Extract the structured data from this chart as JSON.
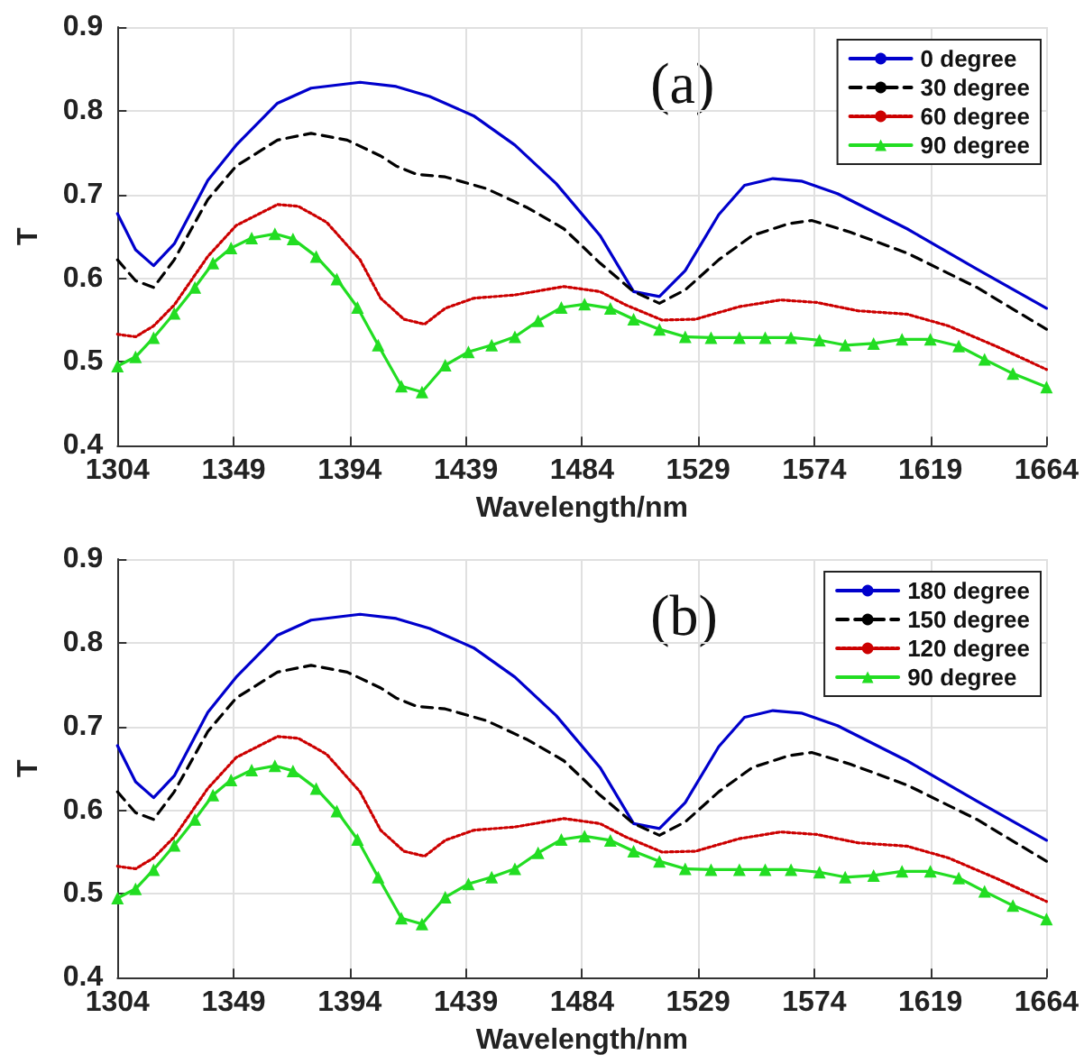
{
  "chart_data": [
    {
      "type": "line",
      "xlabel": "Wavelength/nm",
      "ylabel": "T",
      "annotations": [
        "(a)"
      ],
      "xlim": [
        1304,
        1664
      ],
      "xticks": [
        1304,
        1349,
        1394,
        1439,
        1484,
        1529,
        1574,
        1619,
        1664
      ],
      "ylim": [
        0.4,
        0.9
      ],
      "yticks": [
        0.4,
        0.5,
        0.6,
        0.7,
        0.8,
        0.9
      ],
      "grid": true,
      "legend": "top right",
      "series": [
        {
          "name": "0 degree",
          "color": "#0000cc",
          "line_style": "solid",
          "marker": "none",
          "x": [
            1304,
            1311,
            1318,
            1326,
            1339,
            1350,
            1366,
            1379,
            1398,
            1412,
            1425,
            1442,
            1458,
            1474,
            1491,
            1504,
            1514,
            1524,
            1537,
            1547,
            1558,
            1569,
            1583,
            1610,
            1637,
            1664
          ],
          "values": [
            0.677,
            0.634,
            0.615,
            0.641,
            0.717,
            0.759,
            0.809,
            0.827,
            0.834,
            0.829,
            0.817,
            0.794,
            0.759,
            0.713,
            0.651,
            0.584,
            0.578,
            0.609,
            0.676,
            0.711,
            0.719,
            0.716,
            0.701,
            0.659,
            0.611,
            0.564
          ]
        },
        {
          "name": "30 degree",
          "color": "#000000",
          "line_style": "dashed",
          "marker": "none",
          "x": [
            1304,
            1311,
            1318,
            1326,
            1339,
            1350,
            1366,
            1379,
            1393,
            1406,
            1412,
            1420,
            1431,
            1447,
            1463,
            1477,
            1491,
            1504,
            1514,
            1524,
            1537,
            1550,
            1564,
            1573,
            1588,
            1610,
            1637,
            1664
          ],
          "values": [
            0.622,
            0.597,
            0.589,
            0.622,
            0.694,
            0.734,
            0.765,
            0.773,
            0.765,
            0.746,
            0.734,
            0.724,
            0.721,
            0.707,
            0.684,
            0.659,
            0.618,
            0.584,
            0.57,
            0.586,
            0.622,
            0.651,
            0.665,
            0.669,
            0.655,
            0.63,
            0.589,
            0.539
          ]
        },
        {
          "name": "60 degree",
          "color": "#cc0000",
          "line_style": "dotted",
          "marker": "none",
          "x": [
            1304,
            1311,
            1318,
            1326,
            1339,
            1350,
            1366,
            1374,
            1385,
            1398,
            1406,
            1415,
            1423,
            1431,
            1442,
            1458,
            1477,
            1491,
            1501,
            1515,
            1528,
            1545,
            1561,
            1575,
            1591,
            1610,
            1626,
            1645,
            1664
          ],
          "values": [
            0.533,
            0.53,
            0.543,
            0.568,
            0.626,
            0.663,
            0.688,
            0.686,
            0.667,
            0.622,
            0.576,
            0.551,
            0.545,
            0.564,
            0.576,
            0.58,
            0.59,
            0.584,
            0.568,
            0.55,
            0.551,
            0.566,
            0.574,
            0.571,
            0.561,
            0.557,
            0.543,
            0.518,
            0.491
          ]
        },
        {
          "name": "90 degree",
          "color": "#22dd22",
          "line_style": "solid",
          "marker": "triangle",
          "x": [
            1304,
            1311,
            1318,
            1326,
            1334,
            1341,
            1348,
            1356,
            1365,
            1372,
            1381,
            1389,
            1397,
            1405,
            1414,
            1422,
            1431,
            1440,
            1449,
            1458,
            1467,
            1476,
            1485,
            1495,
            1504,
            1514,
            1524,
            1534,
            1545,
            1555,
            1565,
            1576,
            1586,
            1597,
            1608,
            1619,
            1630,
            1640,
            1651,
            1664
          ],
          "values": [
            0.495,
            0.506,
            0.529,
            0.558,
            0.589,
            0.618,
            0.636,
            0.648,
            0.653,
            0.647,
            0.626,
            0.599,
            0.565,
            0.52,
            0.471,
            0.464,
            0.496,
            0.512,
            0.52,
            0.53,
            0.549,
            0.565,
            0.569,
            0.564,
            0.551,
            0.539,
            0.53,
            0.529,
            0.529,
            0.529,
            0.529,
            0.526,
            0.52,
            0.522,
            0.527,
            0.527,
            0.519,
            0.503,
            0.486,
            0.47
          ]
        }
      ]
    },
    {
      "type": "line",
      "xlabel": "Wavelength/nm",
      "ylabel": "T",
      "annotations": [
        "(b)"
      ],
      "xlim": [
        1304,
        1664
      ],
      "xticks": [
        1304,
        1349,
        1394,
        1439,
        1484,
        1529,
        1574,
        1619,
        1664
      ],
      "ylim": [
        0.4,
        0.9
      ],
      "yticks": [
        0.4,
        0.5,
        0.6,
        0.7,
        0.8,
        0.9
      ],
      "grid": true,
      "legend": "top right",
      "series": [
        {
          "name": "180 degree",
          "color": "#0000cc",
          "line_style": "solid",
          "marker": "none",
          "x": [
            1304,
            1311,
            1318,
            1326,
            1339,
            1350,
            1366,
            1379,
            1398,
            1412,
            1425,
            1442,
            1458,
            1474,
            1491,
            1504,
            1514,
            1524,
            1537,
            1547,
            1558,
            1569,
            1583,
            1610,
            1637,
            1664
          ],
          "values": [
            0.677,
            0.634,
            0.615,
            0.641,
            0.717,
            0.759,
            0.809,
            0.827,
            0.834,
            0.829,
            0.817,
            0.794,
            0.759,
            0.713,
            0.651,
            0.584,
            0.578,
            0.609,
            0.676,
            0.711,
            0.719,
            0.716,
            0.701,
            0.659,
            0.611,
            0.564
          ]
        },
        {
          "name": "150 degree",
          "color": "#000000",
          "line_style": "dashed",
          "marker": "none",
          "x": [
            1304,
            1311,
            1318,
            1326,
            1339,
            1350,
            1366,
            1379,
            1393,
            1406,
            1412,
            1420,
            1431,
            1447,
            1463,
            1477,
            1491,
            1504,
            1514,
            1524,
            1537,
            1550,
            1564,
            1573,
            1588,
            1610,
            1637,
            1664
          ],
          "values": [
            0.622,
            0.597,
            0.589,
            0.622,
            0.694,
            0.734,
            0.765,
            0.773,
            0.765,
            0.746,
            0.734,
            0.724,
            0.721,
            0.707,
            0.684,
            0.659,
            0.618,
            0.584,
            0.57,
            0.586,
            0.622,
            0.651,
            0.665,
            0.669,
            0.655,
            0.63,
            0.589,
            0.539
          ]
        },
        {
          "name": "120 degree",
          "color": "#cc0000",
          "line_style": "dotted",
          "marker": "none",
          "x": [
            1304,
            1311,
            1318,
            1326,
            1339,
            1350,
            1366,
            1374,
            1385,
            1398,
            1406,
            1415,
            1423,
            1431,
            1442,
            1458,
            1477,
            1491,
            1501,
            1515,
            1528,
            1545,
            1561,
            1575,
            1591,
            1610,
            1626,
            1645,
            1664
          ],
          "values": [
            0.533,
            0.53,
            0.543,
            0.568,
            0.626,
            0.663,
            0.688,
            0.686,
            0.667,
            0.622,
            0.576,
            0.551,
            0.545,
            0.564,
            0.576,
            0.58,
            0.59,
            0.584,
            0.568,
            0.55,
            0.551,
            0.566,
            0.574,
            0.571,
            0.561,
            0.557,
            0.543,
            0.518,
            0.491
          ]
        },
        {
          "name": "90 degree",
          "color": "#22dd22",
          "line_style": "solid",
          "marker": "triangle",
          "x": [
            1304,
            1311,
            1318,
            1326,
            1334,
            1341,
            1348,
            1356,
            1365,
            1372,
            1381,
            1389,
            1397,
            1405,
            1414,
            1422,
            1431,
            1440,
            1449,
            1458,
            1467,
            1476,
            1485,
            1495,
            1504,
            1514,
            1524,
            1534,
            1545,
            1555,
            1565,
            1576,
            1586,
            1597,
            1608,
            1619,
            1630,
            1640,
            1651,
            1664
          ],
          "values": [
            0.495,
            0.506,
            0.529,
            0.558,
            0.589,
            0.618,
            0.636,
            0.648,
            0.653,
            0.647,
            0.626,
            0.599,
            0.565,
            0.52,
            0.471,
            0.464,
            0.496,
            0.512,
            0.52,
            0.53,
            0.549,
            0.565,
            0.569,
            0.564,
            0.551,
            0.539,
            0.53,
            0.529,
            0.529,
            0.529,
            0.529,
            0.526,
            0.52,
            0.522,
            0.527,
            0.527,
            0.519,
            0.503,
            0.486,
            0.47
          ]
        }
      ]
    }
  ]
}
